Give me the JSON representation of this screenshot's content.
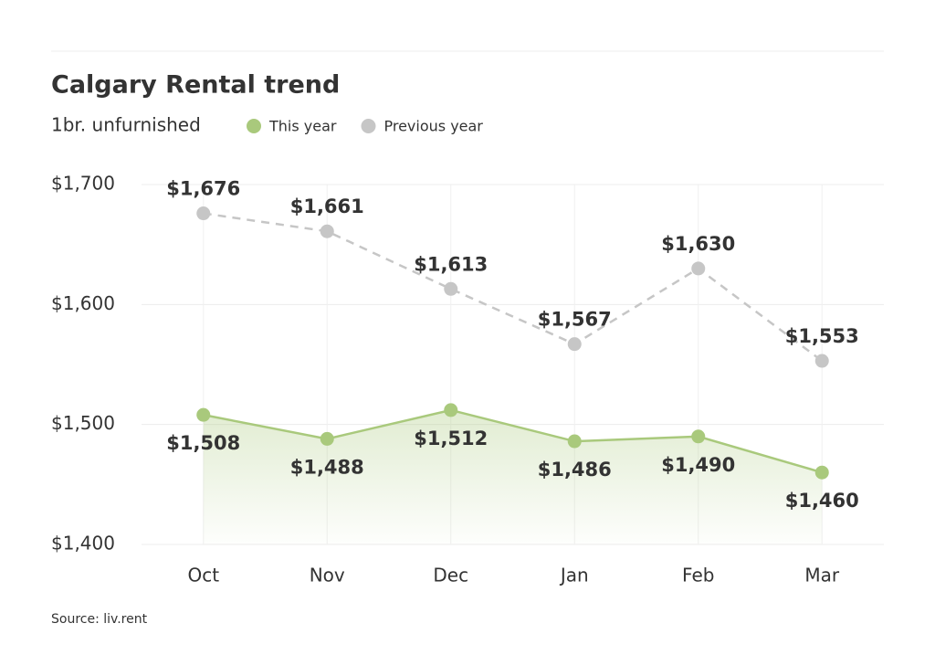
{
  "chart_data": {
    "type": "line",
    "title": "Calgary Rental trend",
    "subtitle": "1br. unfurnished",
    "source": "Source: liv.rent",
    "categories": [
      "Oct",
      "Nov",
      "Dec",
      "Jan",
      "Feb",
      "Mar"
    ],
    "series": [
      {
        "name": "This year",
        "color": "#a9c97c",
        "style": "solid",
        "fill": true,
        "values": [
          1508,
          1488,
          1512,
          1486,
          1490,
          1460
        ],
        "value_labels": [
          "$1,508",
          "$1,488",
          "$1,512",
          "$1,486",
          "$1,490",
          "$1,460"
        ]
      },
      {
        "name": "Previous year",
        "color": "#c6c6c6",
        "style": "dashed",
        "fill": false,
        "values": [
          1676,
          1661,
          1613,
          1567,
          1630,
          1553
        ],
        "value_labels": [
          "$1,676",
          "$1,661",
          "$1,613",
          "$1,567",
          "$1,630",
          "$1,553"
        ]
      }
    ],
    "ylim": [
      1400,
      1700
    ],
    "yticks": [
      {
        "value": 1400,
        "label": "$1,400"
      },
      {
        "value": 1500,
        "label": "$1,500"
      },
      {
        "value": 1600,
        "label": "$1,600"
      },
      {
        "value": 1700,
        "label": "$1,700"
      }
    ],
    "grid": true
  }
}
